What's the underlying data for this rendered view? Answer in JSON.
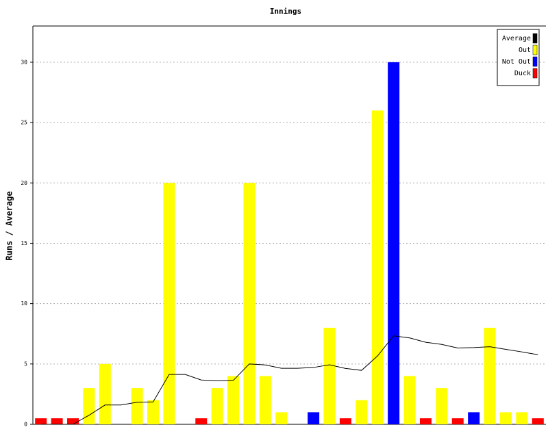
{
  "chart_data": {
    "type": "bar",
    "title": "Innings",
    "y_label": "Runs / Average",
    "categories": [
      null,
      null,
      null,
      null,
      null,
      null,
      null,
      null,
      null,
      null,
      null,
      null,
      null,
      null,
      null,
      null,
      null,
      null,
      null,
      null,
      null,
      null,
      null,
      null,
      null,
      null,
      null,
      null,
      null,
      null,
      null,
      null
    ],
    "series": [
      {
        "name": "Average",
        "color": "#000000",
        "type": "line",
        "values": [
          0,
          0,
          0,
          0.75,
          1.6,
          1.6,
          1.83,
          1.86,
          4.13,
          4.13,
          3.67,
          3.6,
          3.64,
          5,
          4.92,
          4.64,
          4.64,
          4.71,
          4.93,
          4.63,
          4.47,
          5.67,
          7.33,
          7.16,
          6.8,
          6.62,
          6.32,
          6.36,
          6.43,
          6.21,
          6,
          5.77
        ]
      },
      {
        "name": "Out",
        "color": "#ffff00",
        "values": [
          null,
          null,
          null,
          3,
          5,
          null,
          3,
          2,
          20,
          null,
          null,
          3,
          4,
          20,
          4,
          1,
          null,
          null,
          8,
          null,
          2,
          26,
          null,
          4,
          null,
          3,
          null,
          null,
          8,
          1,
          1,
          null
        ]
      },
      {
        "name": "Not Out",
        "color": "#0000ff",
        "values": [
          null,
          null,
          null,
          null,
          null,
          null,
          null,
          null,
          null,
          null,
          null,
          null,
          null,
          null,
          null,
          null,
          null,
          1,
          null,
          null,
          null,
          null,
          30,
          null,
          null,
          null,
          null,
          1,
          null,
          null,
          null,
          null
        ]
      },
      {
        "name": "Duck",
        "color": "#ff0000",
        "values": [
          0.5,
          0.5,
          0.5,
          null,
          null,
          null,
          null,
          null,
          null,
          null,
          0.5,
          null,
          null,
          null,
          null,
          null,
          null,
          null,
          null,
          0.5,
          null,
          null,
          null,
          null,
          0.5,
          null,
          0.5,
          null,
          null,
          null,
          null,
          0.5
        ]
      }
    ],
    "ylim": [
      0,
      33
    ],
    "yticks": [
      0,
      5,
      10,
      15,
      20,
      25,
      30
    ],
    "grid": true,
    "legend": "top-right"
  }
}
